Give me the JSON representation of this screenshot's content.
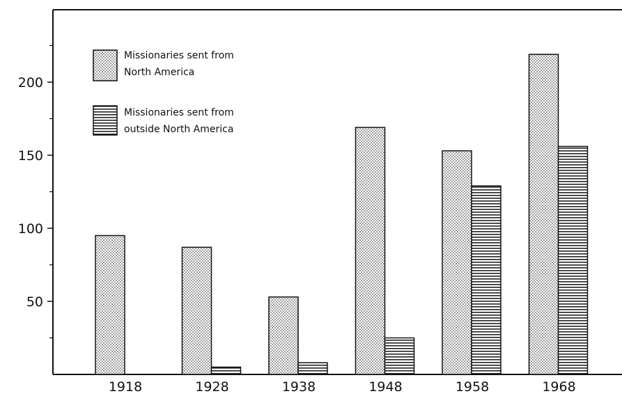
{
  "chart_data": {
    "type": "bar",
    "categories": [
      "1918",
      "1928",
      "1938",
      "1948",
      "1958",
      "1968"
    ],
    "series": [
      {
        "name": "Missionaries sent from North America",
        "pattern": "dots",
        "values": [
          95,
          87,
          53,
          169,
          153,
          219
        ]
      },
      {
        "name": "Missionaries sent from outside North America",
        "pattern": "horizontal-lines",
        "values": [
          0,
          5,
          8,
          25,
          129,
          156
        ]
      }
    ],
    "yticks": [
      50,
      100,
      150,
      200
    ],
    "ylim": [
      0,
      250
    ],
    "grid": false,
    "legend_position": "top-left",
    "colors": {
      "ink": "#111111",
      "background": "#ffffff"
    }
  }
}
